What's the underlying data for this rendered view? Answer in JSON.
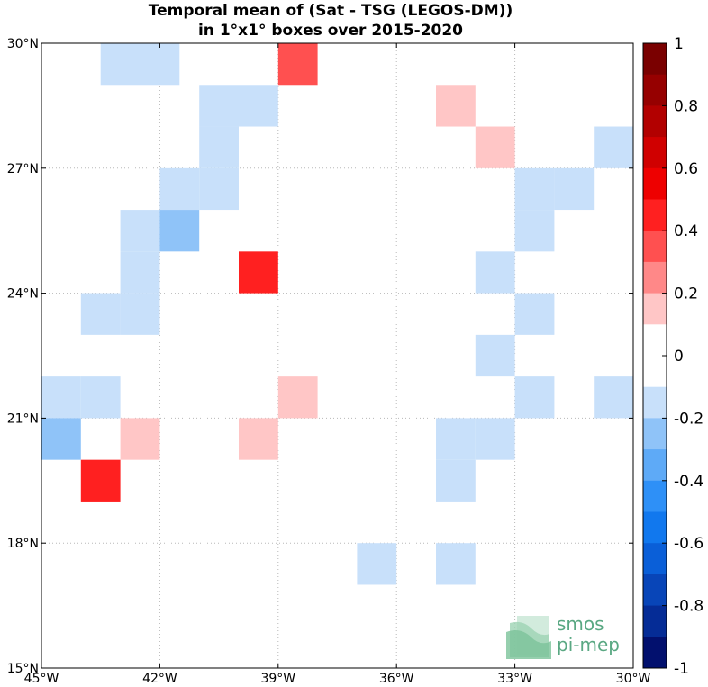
{
  "chart_data": {
    "type": "heatmap",
    "title_line1": "Temporal mean of (Sat - TSG (LEGOS-DM))",
    "title_line2": "in 1°x1° boxes over 2015-2020",
    "xlim": [
      -45,
      -30
    ],
    "ylim": [
      15,
      30
    ],
    "x_ticks": [
      {
        "value": -45,
        "label": "45°W"
      },
      {
        "value": -42,
        "label": "42°W"
      },
      {
        "value": -39,
        "label": "39°W"
      },
      {
        "value": -36,
        "label": "36°W"
      },
      {
        "value": -33,
        "label": "33°W"
      },
      {
        "value": -30,
        "label": "30°W"
      }
    ],
    "y_ticks": [
      {
        "value": 15,
        "label": "15°N"
      },
      {
        "value": 18,
        "label": "18°N"
      },
      {
        "value": 21,
        "label": "21°N"
      },
      {
        "value": 24,
        "label": "24°N"
      },
      {
        "value": 27,
        "label": "27°N"
      },
      {
        "value": 30,
        "label": "30°N"
      }
    ],
    "grid": true,
    "cell_size_deg": 1,
    "cells": [
      {
        "lon": -43,
        "lat": 29.5,
        "value": -0.15
      },
      {
        "lon": -42,
        "lat": 29.5,
        "value": -0.15
      },
      {
        "lon": -38.5,
        "lat": 29.5,
        "value": 0.35
      },
      {
        "lon": -40.5,
        "lat": 28.5,
        "value": -0.15
      },
      {
        "lon": -39.5,
        "lat": 28.5,
        "value": -0.15
      },
      {
        "lon": -34.5,
        "lat": 28.5,
        "value": 0.15
      },
      {
        "lon": -40.5,
        "lat": 27.5,
        "value": -0.15
      },
      {
        "lon": -33.5,
        "lat": 27.5,
        "value": 0.15
      },
      {
        "lon": -30.5,
        "lat": 27.5,
        "value": -0.15
      },
      {
        "lon": -40.5,
        "lat": 26.5,
        "value": -0.15
      },
      {
        "lon": -41.5,
        "lat": 26.5,
        "value": -0.15
      },
      {
        "lon": -32.5,
        "lat": 26.5,
        "value": -0.15
      },
      {
        "lon": -31.5,
        "lat": 26.5,
        "value": -0.15
      },
      {
        "lon": -42.5,
        "lat": 25.5,
        "value": -0.15
      },
      {
        "lon": -41.5,
        "lat": 25.5,
        "value": -0.25
      },
      {
        "lon": -32.5,
        "lat": 25.5,
        "value": -0.15
      },
      {
        "lon": -42.5,
        "lat": 24.5,
        "value": -0.15
      },
      {
        "lon": -39.5,
        "lat": 24.5,
        "value": 0.45
      },
      {
        "lon": -33.5,
        "lat": 24.5,
        "value": -0.15
      },
      {
        "lon": -43.5,
        "lat": 23.5,
        "value": -0.15
      },
      {
        "lon": -42.5,
        "lat": 23.5,
        "value": -0.15
      },
      {
        "lon": -32.5,
        "lat": 23.5,
        "value": -0.15
      },
      {
        "lon": -33.5,
        "lat": 22.5,
        "value": -0.15
      },
      {
        "lon": -44.5,
        "lat": 21.5,
        "value": -0.15
      },
      {
        "lon": -43.5,
        "lat": 21.5,
        "value": -0.15
      },
      {
        "lon": -38.5,
        "lat": 21.5,
        "value": 0.15
      },
      {
        "lon": -32.5,
        "lat": 21.5,
        "value": -0.15
      },
      {
        "lon": -30.5,
        "lat": 21.5,
        "value": -0.15
      },
      {
        "lon": -44.5,
        "lat": 20.5,
        "value": -0.25
      },
      {
        "lon": -42.5,
        "lat": 20.5,
        "value": 0.15
      },
      {
        "lon": -39.5,
        "lat": 20.5,
        "value": 0.15
      },
      {
        "lon": -34.5,
        "lat": 20.5,
        "value": -0.15
      },
      {
        "lon": -33.5,
        "lat": 20.5,
        "value": -0.15
      },
      {
        "lon": -43.5,
        "lat": 19.5,
        "value": 0.45
      },
      {
        "lon": -34.5,
        "lat": 19.5,
        "value": -0.15
      },
      {
        "lon": -36.5,
        "lat": 17.5,
        "value": -0.15
      },
      {
        "lon": -34.5,
        "lat": 17.5,
        "value": -0.15
      }
    ],
    "colorbar": {
      "range": [
        -1,
        1
      ],
      "tick_values": [
        1,
        0.8,
        0.6,
        0.4,
        0.2,
        0,
        -0.2,
        -0.4,
        -0.6,
        -0.8,
        -1
      ],
      "tick_labels": [
        "1",
        "0.8",
        "0.6",
        "0.4",
        "0.2",
        "0",
        "-0.2",
        "-0.4",
        "-0.6",
        "-0.8",
        "-1"
      ],
      "colors_top_to_bottom": [
        "#7a0000",
        "#960000",
        "#b20000",
        "#d00000",
        "#ee0000",
        "#ff2020",
        "#ff5050",
        "#ff8888",
        "#ffc6c6",
        "#ffffff",
        "#ffffff",
        "#c8e0fa",
        "#8fc3f8",
        "#5eaaf7",
        "#2e90f7",
        "#1178ee",
        "#0a5fd8",
        "#0845b8",
        "#052c96",
        "#02106e"
      ]
    }
  },
  "logo": {
    "line1": "smos",
    "line2": "pi-mep"
  }
}
